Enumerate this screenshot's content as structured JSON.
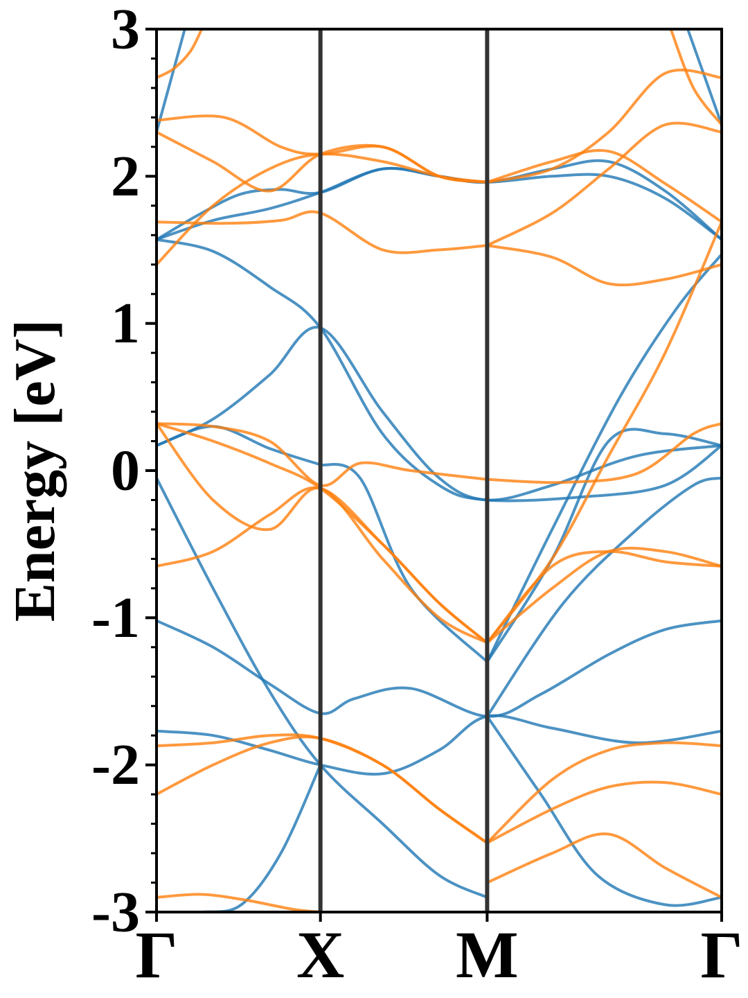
{
  "chart_data": {
    "type": "line",
    "title": "",
    "xlabel": "",
    "ylabel": "Energy [eV]",
    "ylim": [
      -3,
      3
    ],
    "x_ticks": [
      {
        "label": "Γ",
        "k": 0.0
      },
      {
        "label": "X",
        "k": 0.29
      },
      {
        "label": "M",
        "k": 0.585
      },
      {
        "label": "Γ",
        "k": 1.0
      }
    ],
    "y_ticks": [
      -3,
      -2,
      -1,
      0,
      1,
      2,
      3
    ],
    "y_tick_labels": [
      "-3",
      "-2",
      "-1",
      "0",
      "1",
      "2",
      "3"
    ],
    "grid": false,
    "legend": "none",
    "high_symmetry_lines": [
      0.29,
      0.585
    ],
    "colors": {
      "series_a": "#1f77b4",
      "series_b": "#ff7f0e",
      "symmetry_line": "#333333"
    },
    "series": [
      {
        "color": "#1f77b4",
        "bands": [
          {
            "x": [
              0,
              0.1,
              0.2,
              0.29,
              0.4,
              0.5,
              0.585,
              0.75,
              0.9,
              1.0
            ],
            "y": [
              1.57,
              1.49,
              1.25,
              0.97,
              0.25,
              -0.1,
              -0.2,
              -0.18,
              -0.1,
              0.17
            ]
          },
          {
            "x": [
              0,
              0.1,
              0.2,
              0.29,
              0.4,
              0.5,
              0.585,
              0.7,
              0.85,
              1.0
            ],
            "y": [
              0.17,
              0.35,
              0.65,
              0.97,
              0.4,
              -0.05,
              -0.2,
              -0.1,
              0.1,
              0.17
            ]
          },
          {
            "x": [
              0,
              0.1,
              0.2,
              0.29,
              0.35,
              0.45,
              0.585,
              0.68,
              0.8,
              0.9,
              1.0
            ],
            "y": [
              -1.02,
              -1.2,
              -1.45,
              -1.65,
              -1.55,
              -1.48,
              -1.67,
              -1.52,
              -1.25,
              -1.08,
              -1.02
            ]
          },
          {
            "x": [
              0,
              0.1,
              0.2,
              0.29,
              0.4,
              0.5,
              0.585,
              0.7,
              0.85,
              1.0
            ],
            "y": [
              -1.77,
              -1.8,
              -1.9,
              -2.0,
              -2.06,
              -1.9,
              -1.67,
              -1.75,
              -1.85,
              -1.77
            ]
          },
          {
            "x": [
              0,
              0.08,
              0.15,
              0.22,
              0.29,
              0.4,
              0.5,
              0.585,
              0.7,
              0.8,
              0.9,
              1.0
            ],
            "y": [
              1.57,
              1.75,
              1.88,
              1.91,
              1.89,
              2.05,
              2.0,
              1.96,
              2.0,
              2.0,
              1.85,
              1.57
            ]
          },
          {
            "x": [
              0,
              0.1,
              0.2,
              0.29,
              0.4,
              0.5,
              0.585,
              0.7,
              0.8,
              0.9,
              1.0
            ],
            "y": [
              1.57,
              1.7,
              1.78,
              1.89,
              2.05,
              2.0,
              1.96,
              2.05,
              2.1,
              1.9,
              1.57
            ]
          },
          {
            "x": [
              0,
              0.1,
              0.2,
              0.29
            ],
            "y": [
              0.17,
              0.3,
              0.15,
              0.04
            ]
          },
          {
            "x": [
              0.29,
              0.36,
              0.45,
              0.585
            ],
            "y": [
              0.04,
              -0.05,
              -0.8,
              -1.3
            ]
          },
          {
            "x": [
              0.585,
              0.7,
              0.8,
              0.9,
              1.0
            ],
            "y": [
              -1.3,
              -0.6,
              0.2,
              0.25,
              0.17
            ]
          },
          {
            "x": [
              0,
              0.1,
              0.2,
              0.29,
              0.4,
              0.5,
              0.585
            ],
            "y": [
              -0.05,
              -0.8,
              -1.5,
              -2.0,
              -2.4,
              -2.75,
              -2.9
            ]
          },
          {
            "x": [
              0.585,
              0.68,
              0.78,
              0.9,
              1.0
            ],
            "y": [
              -1.67,
              -2.2,
              -2.75,
              -2.95,
              -2.9
            ]
          },
          {
            "x": [
              0.585,
              0.7,
              0.82,
              0.92,
              1.0
            ],
            "y": [
              -1.3,
              -0.4,
              0.5,
              1.1,
              1.47
            ]
          },
          {
            "x": [
              0.585,
              0.72,
              0.85,
              0.95,
              1.0
            ],
            "y": [
              -1.67,
              -0.9,
              -0.4,
              -0.1,
              -0.05
            ]
          },
          {
            "x": [
              0,
              0.08,
              0.15,
              0.22,
              0.29
            ],
            "y": [
              -3.0,
              -3.0,
              -2.95,
              -2.6,
              -2.0
            ]
          },
          {
            "x": [
              0,
              0.05
            ],
            "y": [
              2.3,
              3.0
            ]
          },
          {
            "x": [
              0.94,
              1.0
            ],
            "y": [
              3.0,
              2.35
            ]
          }
        ]
      },
      {
        "color": "#ff7f0e",
        "bands": [
          {
            "x": [
              0,
              0.12,
              0.22,
              0.29,
              0.4,
              0.5,
              0.585
            ],
            "y": [
              1.69,
              1.68,
              1.7,
              1.75,
              1.5,
              1.5,
              1.53
            ]
          },
          {
            "x": [
              0.585,
              0.7,
              0.8,
              0.9,
              1.0
            ],
            "y": [
              1.53,
              1.45,
              1.27,
              1.3,
              1.4
            ]
          },
          {
            "x": [
              0,
              0.1,
              0.2,
              0.29,
              0.4,
              0.5,
              0.585
            ],
            "y": [
              2.3,
              2.1,
              1.9,
              2.15,
              2.2,
              2.0,
              1.96
            ]
          },
          {
            "x": [
              0.585,
              0.7,
              0.8,
              0.9,
              1.0
            ],
            "y": [
              1.96,
              2.1,
              2.17,
              1.95,
              1.69
            ]
          },
          {
            "x": [
              0,
              0.12,
              0.22,
              0.29,
              0.4,
              0.5,
              0.585
            ],
            "y": [
              2.38,
              2.4,
              2.2,
              2.15,
              2.2,
              2.0,
              1.96
            ]
          },
          {
            "x": [
              0.585,
              0.7,
              0.8,
              0.9,
              1.0
            ],
            "y": [
              1.96,
              2.05,
              2.3,
              2.7,
              2.67
            ]
          },
          {
            "x": [
              0,
              0.1,
              0.2,
              0.29,
              0.4,
              0.5,
              0.585
            ],
            "y": [
              1.4,
              1.8,
              2.05,
              2.15,
              2.1,
              2.0,
              1.96
            ]
          },
          {
            "x": [
              0.585,
              0.7,
              0.8,
              0.9,
              1.0
            ],
            "y": [
              1.53,
              1.75,
              2.05,
              2.35,
              2.3
            ]
          },
          {
            "x": [
              0,
              0.1,
              0.2,
              0.29,
              0.36,
              0.45,
              0.585
            ],
            "y": [
              0.32,
              0.3,
              0.2,
              -0.1,
              0.05,
              0.0,
              -0.06
            ]
          },
          {
            "x": [
              0.585,
              0.72,
              0.85,
              0.95,
              1.0
            ],
            "y": [
              -0.06,
              -0.08,
              -0.02,
              0.25,
              0.32
            ]
          },
          {
            "x": [
              0,
              0.1,
              0.2,
              0.29,
              0.4,
              0.5,
              0.585
            ],
            "y": [
              0.32,
              0.2,
              0.05,
              -0.12,
              -0.5,
              -0.9,
              -1.17
            ]
          },
          {
            "x": [
              0.585,
              0.7,
              0.8,
              0.9,
              1.0
            ],
            "y": [
              -1.17,
              -0.6,
              0.1,
              0.8,
              1.69
            ]
          },
          {
            "x": [
              0,
              0.1,
              0.2,
              0.29,
              0.4,
              0.5,
              0.585
            ],
            "y": [
              0.32,
              -0.2,
              -0.4,
              -0.12,
              -0.6,
              -1.0,
              -1.17
            ]
          },
          {
            "x": [
              0.585,
              0.7,
              0.8,
              0.9,
              1.0
            ],
            "y": [
              -1.17,
              -0.65,
              -0.55,
              -0.62,
              -0.65
            ]
          },
          {
            "x": [
              0,
              0.1,
              0.2,
              0.29,
              0.4,
              0.5,
              0.585
            ],
            "y": [
              -0.65,
              -0.55,
              -0.3,
              -0.12,
              -0.5,
              -0.9,
              -1.17
            ]
          },
          {
            "x": [
              0.585,
              0.7,
              0.8,
              0.9,
              1.0
            ],
            "y": [
              -1.17,
              -0.8,
              -0.55,
              -0.55,
              -0.65
            ]
          },
          {
            "x": [
              0,
              0.1,
              0.2,
              0.29,
              0.4,
              0.5,
              0.585
            ],
            "y": [
              -1.87,
              -1.85,
              -1.8,
              -1.82,
              -2.0,
              -2.3,
              -2.53
            ]
          },
          {
            "x": [
              0.585,
              0.7,
              0.8,
              0.9,
              1.0
            ],
            "y": [
              -2.53,
              -2.1,
              -1.9,
              -1.85,
              -1.87
            ]
          },
          {
            "x": [
              0,
              0.1,
              0.2,
              0.29,
              0.4,
              0.5,
              0.585
            ],
            "y": [
              -2.2,
              -2.0,
              -1.85,
              -1.82,
              -2.0,
              -2.3,
              -2.53
            ]
          },
          {
            "x": [
              0.585,
              0.7,
              0.8,
              0.9,
              1.0
            ],
            "y": [
              -2.53,
              -2.3,
              -2.15,
              -2.12,
              -2.2
            ]
          },
          {
            "x": [
              0.585,
              0.7,
              0.8,
              0.9,
              1.0
            ],
            "y": [
              -2.8,
              -2.6,
              -2.47,
              -2.7,
              -2.9
            ]
          },
          {
            "x": [
              0,
              0.08,
              0.16,
              0.24,
              0.29
            ],
            "y": [
              -2.9,
              -2.88,
              -2.92,
              -2.98,
              -3.0
            ]
          },
          {
            "x": [
              0,
              0.03,
              0.06,
              0.08
            ],
            "y": [
              2.67,
              2.73,
              2.85,
              3.0
            ]
          },
          {
            "x": [
              0.91,
              0.95,
              1.0
            ],
            "y": [
              3.0,
              2.6,
              2.35
            ]
          }
        ]
      }
    ]
  }
}
